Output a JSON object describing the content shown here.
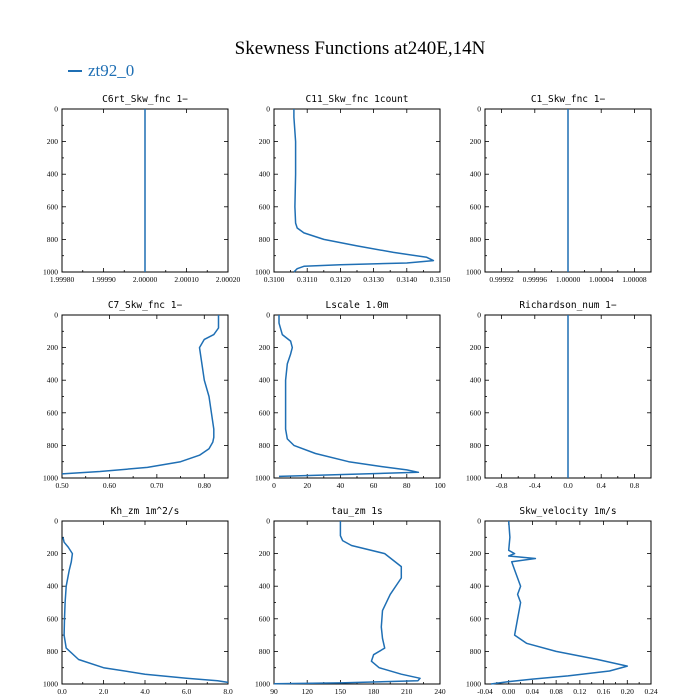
{
  "figure": {
    "title": "Skewness Functions at240E,14N",
    "legend": {
      "label": "zt92_0",
      "color": "#1f6fb4"
    }
  },
  "chart_data": [
    {
      "type": "line",
      "title": "C6rt_Skw_fnc   1−",
      "xlim": [
        1.9998,
        2.0002
      ],
      "ylim": [
        1000,
        0
      ],
      "xticks": [
        "1.99980",
        "1.99990",
        "2.00000",
        "2.00010",
        "2.00020"
      ],
      "yticks": [
        "0",
        "200",
        "400",
        "600",
        "800",
        "1000"
      ],
      "series": [
        {
          "x": [
            2.0,
            2.0
          ],
          "y": [
            0,
            1000
          ]
        }
      ]
    },
    {
      "type": "line",
      "title": "C11_Skw_fnc   1count",
      "xlim": [
        0.31,
        0.315
      ],
      "ylim": [
        1000,
        0
      ],
      "xticks": [
        "0.3100",
        "0.3110",
        "0.3120",
        "0.3130",
        "0.3140",
        "0.3150"
      ],
      "yticks": [
        "0",
        "200",
        "400",
        "600",
        "800",
        "1000"
      ],
      "series": [
        {
          "x": [
            0.3106,
            0.3106,
            0.31065,
            0.31065,
            0.31063,
            0.31065,
            0.3107,
            0.3109,
            0.3115,
            0.3125,
            0.3136,
            0.3146,
            0.3148,
            0.314,
            0.312,
            0.3109,
            0.3107,
            0.3106
          ],
          "y": [
            0,
            50,
            200,
            400,
            600,
            700,
            730,
            760,
            800,
            840,
            880,
            910,
            930,
            945,
            955,
            965,
            980,
            1000
          ]
        }
      ]
    },
    {
      "type": "line",
      "title": "C1_Skw_fnc   1−",
      "xlim": [
        0.9999,
        1.0001
      ],
      "ylim": [
        1000,
        0
      ],
      "xticks": [
        "0.99992",
        "0.99996",
        "1.00000",
        "1.00004",
        "1.00008"
      ],
      "yticks": [
        "0",
        "200",
        "400",
        "600",
        "800",
        "1000"
      ],
      "series": [
        {
          "x": [
            1.0,
            1.0
          ],
          "y": [
            0,
            1000
          ]
        }
      ]
    },
    {
      "type": "line",
      "title": "C7_Skw_fnc   1−",
      "xlim": [
        0.5,
        0.85
      ],
      "ylim": [
        1000,
        0
      ],
      "xticks": [
        "0.50",
        "0.60",
        "0.70",
        "0.80"
      ],
      "yticks": [
        "0",
        "200",
        "400",
        "600",
        "800",
        "1000"
      ],
      "series": [
        {
          "x": [
            0.83,
            0.83,
            0.82,
            0.8,
            0.79,
            0.795,
            0.8,
            0.81,
            0.815,
            0.82,
            0.82,
            0.818,
            0.81,
            0.79,
            0.75,
            0.68,
            0.58,
            0.5
          ],
          "y": [
            0,
            80,
            120,
            150,
            200,
            300,
            400,
            500,
            600,
            700,
            750,
            780,
            820,
            860,
            900,
            935,
            960,
            975
          ]
        }
      ]
    },
    {
      "type": "line",
      "title": "Lscale   1.0m",
      "xlim": [
        0,
        100
      ],
      "ylim": [
        1000,
        0
      ],
      "xticks": [
        "0",
        "20",
        "40",
        "60",
        "80",
        "100"
      ],
      "yticks": [
        "0",
        "200",
        "400",
        "600",
        "800",
        "1000"
      ],
      "series": [
        {
          "x": [
            3,
            3,
            5,
            10,
            11,
            10,
            8,
            7,
            7,
            7,
            8,
            12,
            25,
            45,
            65,
            80,
            87,
            3
          ],
          "y": [
            0,
            50,
            120,
            160,
            200,
            240,
            300,
            400,
            600,
            700,
            760,
            800,
            850,
            900,
            930,
            950,
            965,
            990
          ]
        }
      ]
    },
    {
      "type": "line",
      "title": "Richardson_num   1−",
      "xlim": [
        -1,
        1
      ],
      "ylim": [
        1000,
        0
      ],
      "xticks": [
        "-0.8",
        "-0.4",
        "0.0",
        "0.4",
        "0.8"
      ],
      "yticks": [
        "0",
        "200",
        "400",
        "600",
        "800",
        "1000"
      ],
      "series": [
        {
          "x": [
            0,
            0
          ],
          "y": [
            0,
            1000
          ]
        }
      ]
    },
    {
      "type": "line",
      "title": "Kh_zm   1m^2/s",
      "xlim": [
        0,
        8
      ],
      "ylim": [
        1000,
        0
      ],
      "xticks": [
        "0.0",
        "2.0",
        "4.0",
        "6.0",
        "8.0"
      ],
      "yticks": [
        "0",
        "200",
        "400",
        "600",
        "800",
        "1000"
      ],
      "series": [
        {
          "x": [
            0.05,
            0.1,
            0.3,
            0.5,
            0.45,
            0.35,
            0.2,
            0.15,
            0.12,
            0.1,
            0.2,
            0.8,
            2.0,
            4.0,
            6.0,
            7.5,
            8.0
          ],
          "y": [
            100,
            130,
            160,
            200,
            250,
            300,
            400,
            500,
            600,
            700,
            780,
            850,
            900,
            940,
            965,
            980,
            990
          ]
        }
      ]
    },
    {
      "type": "line",
      "title": "tau_zm   1s",
      "xlim": [
        90,
        240
      ],
      "ylim": [
        1000,
        0
      ],
      "xticks": [
        "90",
        "120",
        "150",
        "180",
        "210",
        "240"
      ],
      "yticks": [
        "0",
        "200",
        "400",
        "600",
        "800",
        "1000"
      ],
      "series": [
        {
          "x": [
            150,
            150,
            152,
            160,
            190,
            205,
            205,
            195,
            188,
            187,
            188,
            190,
            180,
            178,
            185,
            205,
            222,
            220,
            150,
            90
          ],
          "y": [
            0,
            90,
            120,
            150,
            200,
            280,
            350,
            450,
            550,
            650,
            720,
            780,
            820,
            860,
            900,
            940,
            965,
            980,
            993,
            998
          ]
        }
      ]
    },
    {
      "type": "line",
      "title": "Skw_velocity   1m/s",
      "xlim": [
        -0.04,
        0.24
      ],
      "ylim": [
        1000,
        0
      ],
      "xticks": [
        "-0.04",
        "0.00",
        "0.04",
        "0.08",
        "0.12",
        "0.16",
        "0.20",
        "0.24"
      ],
      "yticks": [
        "0",
        "200",
        "400",
        "600",
        "800",
        "1000"
      ],
      "series": [
        {
          "x": [
            0.0,
            0.002,
            0.0,
            0.01,
            0.0,
            0.045,
            0.005,
            0.01,
            0.02,
            0.015,
            0.02,
            0.015,
            0.01,
            0.03,
            0.08,
            0.15,
            0.2,
            0.17,
            0.1,
            0.04,
            0.0,
            -0.03
          ],
          "y": [
            0,
            100,
            180,
            200,
            215,
            230,
            250,
            300,
            400,
            450,
            500,
            600,
            700,
            750,
            800,
            850,
            890,
            920,
            950,
            970,
            985,
            1000
          ]
        }
      ]
    }
  ]
}
